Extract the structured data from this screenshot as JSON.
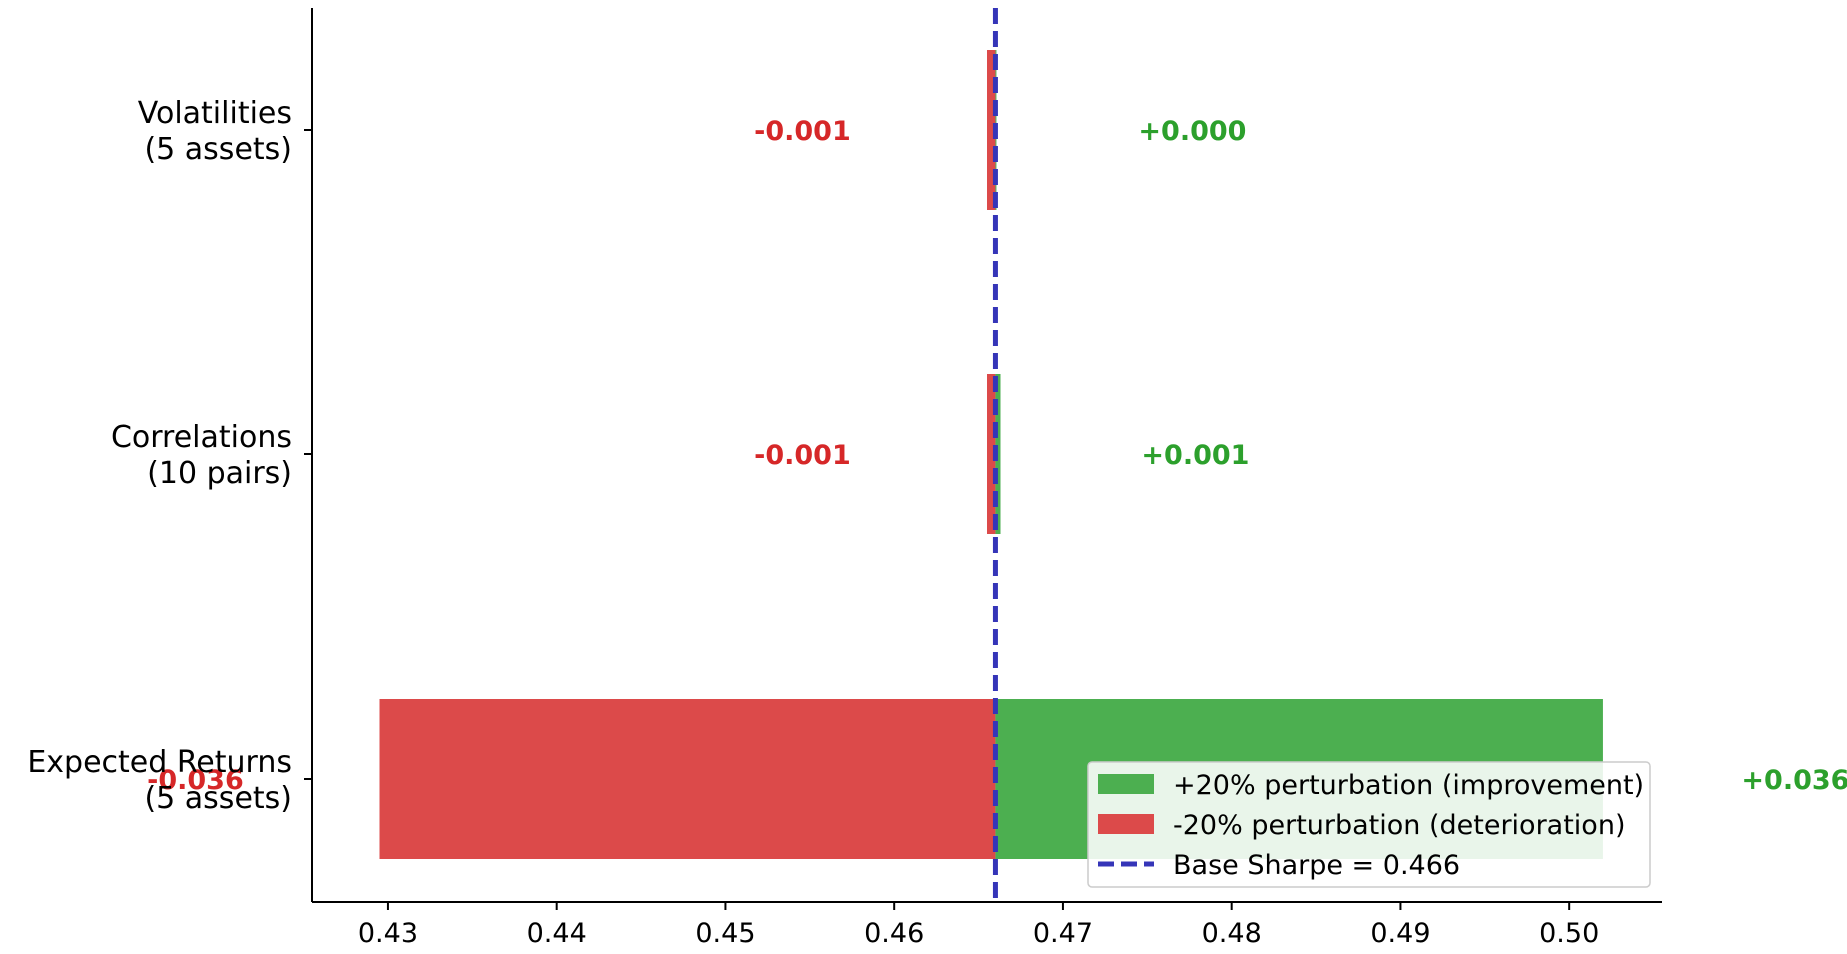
{
  "chart_data": {
    "type": "bar",
    "orientation": "horizontal",
    "chart_style": "tornado",
    "categories": [
      [
        "Volatilities",
        "(5 assets)"
      ],
      [
        "Correlations",
        "(10 pairs)"
      ],
      [
        "Expected Returns",
        "(5 assets)"
      ]
    ],
    "base_value": 0.466,
    "series": [
      {
        "name": "+20% perturbation (improvement)",
        "color": "#4caf50",
        "values": [
          0.466,
          0.4663,
          0.502
        ],
        "labels": [
          "+0.000",
          "+0.001",
          "+0.036"
        ]
      },
      {
        "name": "-20% perturbation (deterioration)",
        "color": "#dc4a4a",
        "values": [
          0.4655,
          0.4655,
          0.4295
        ],
        "labels": [
          "-0.001",
          "-0.001",
          "-0.036"
        ]
      }
    ],
    "reference_line": {
      "label": "Base Sharpe = 0.466",
      "value": 0.466,
      "color": "#3535b8",
      "style": "dashed"
    },
    "xlim": [
      0.4255,
      0.5055
    ],
    "xticks": [
      "0.43",
      "0.44",
      "0.45",
      "0.46",
      "0.47",
      "0.48",
      "0.49",
      "0.50"
    ],
    "xtick_values": [
      0.43,
      0.44,
      0.45,
      0.46,
      0.47,
      0.48,
      0.49,
      0.5
    ],
    "label_colors": {
      "positive": "#2ca02c",
      "negative": "#d62728"
    },
    "legend_position": "lower-right",
    "grid": false,
    "title": "",
    "xlabel": "",
    "ylabel": ""
  }
}
